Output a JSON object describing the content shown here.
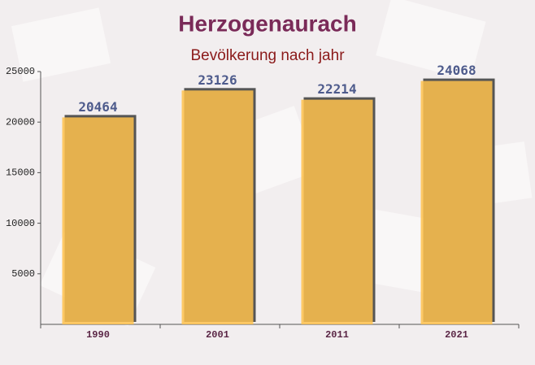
{
  "chart_data": {
    "type": "bar",
    "title": "Herzogenaurach",
    "subtitle": "Bevölkerung nach jahr",
    "categories": [
      "1990",
      "2001",
      "2011",
      "2021"
    ],
    "values": [
      20464,
      23126,
      22214,
      24068
    ],
    "color": "#ffc24d",
    "ylim": [
      0,
      25000
    ],
    "yticks": [
      5000,
      10000,
      15000,
      20000,
      25000
    ]
  }
}
